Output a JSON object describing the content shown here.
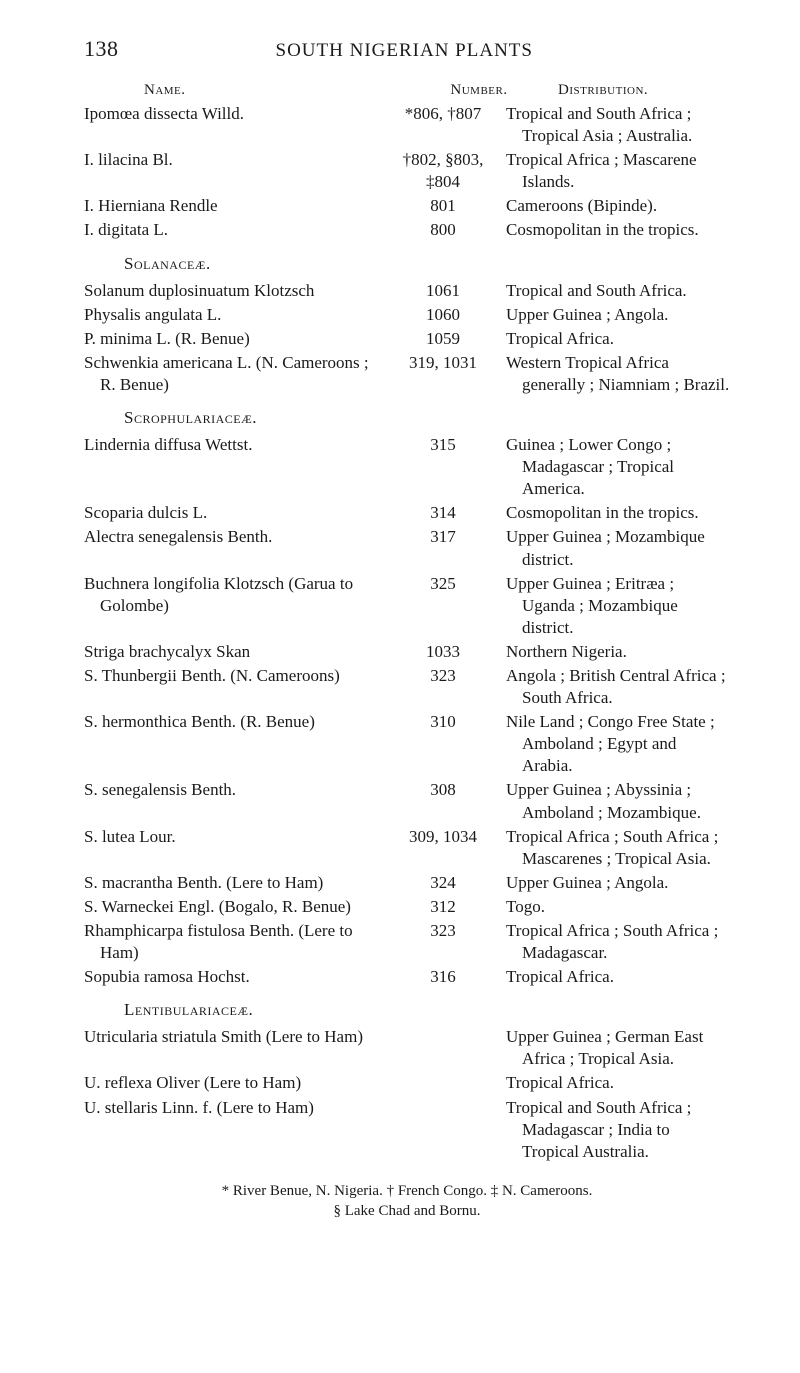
{
  "page": {
    "number": "138",
    "running_title": "SOUTH NIGERIAN PLANTS"
  },
  "columns": {
    "name": "Name.",
    "number": "Number.",
    "distribution": "Distribution."
  },
  "block1": [
    {
      "name": "Ipomœa dissecta Willd.",
      "number": "*806, †807",
      "dist": "Tropical and South Africa ; Tropical Asia ; Australia."
    },
    {
      "name": "I. lilacina Bl.",
      "number": "†802, §803, ‡804",
      "dist": "Tropical Africa ; Mascarene Islands."
    },
    {
      "name": "I. Hierniana Rendle",
      "number": "801",
      "dist": "Cameroons (Bipinde)."
    },
    {
      "name": "I. digitata L.",
      "number": "800",
      "dist": "Cosmopolitan in the tropics."
    }
  ],
  "family1": "Solanaceæ.",
  "block2": [
    {
      "name": "Solanum duplosinuatum Klotzsch",
      "number": "1061",
      "dist": "Tropical and South Africa."
    },
    {
      "name": "Physalis angulata L.",
      "number": "1060",
      "dist": "Upper Guinea ; Angola."
    },
    {
      "name": "P. minima L. (R. Benue)",
      "number": "1059",
      "dist": "Tropical Africa."
    },
    {
      "name": "Schwenkia americana L. (N. Cameroons ; R. Benue)",
      "number": "319, 1031",
      "dist": "Western Tropical Africa generally ; Niamniam ; Brazil."
    }
  ],
  "family2": "Scrophulariaceæ.",
  "block3": [
    {
      "name": "Lindernia diffusa Wettst.",
      "number": "315",
      "dist": "Guinea ; Lower Congo ; Madagascar ; Tropical America."
    },
    {
      "name": "Scoparia dulcis L.",
      "number": "314",
      "dist": "Cosmopolitan in the tropics."
    },
    {
      "name": "Alectra senegalensis Benth.",
      "number": "317",
      "dist": "Upper Guinea ; Mozambique district."
    },
    {
      "name": "Buchnera longifolia Klotzsch (Garua to Golombe)",
      "number": "325",
      "dist": "Upper Guinea ; Eritræa ; Uganda ; Mozambique district."
    },
    {
      "name": "Striga brachycalyx Skan",
      "number": "1033",
      "dist": "Northern Nigeria."
    },
    {
      "name": "S. Thunbergii Benth. (N. Cameroons)",
      "number": "323",
      "dist": "Angola ; British Central Africa ; South Africa."
    },
    {
      "name": "S. hermonthica Benth. (R. Benue)",
      "number": "310",
      "dist": "Nile Land ; Congo Free State ; Amboland ; Egypt and Arabia."
    },
    {
      "name": "S. senegalensis Benth.",
      "number": "308",
      "dist": "Upper Guinea ; Abyssinia ; Amboland ; Mozambique."
    },
    {
      "name": "S. lutea Lour.",
      "number": "309, 1034",
      "dist": "Tropical Africa ; South Africa ; Mascarenes ; Tropical Asia."
    },
    {
      "name": "S. macrantha Benth. (Lere to Ham)",
      "number": "324",
      "dist": "Upper Guinea ; Angola."
    },
    {
      "name": "S. Warneckei Engl. (Bogalo, R. Benue)",
      "number": "312",
      "dist": "Togo."
    },
    {
      "name": "Rhamphicarpa fistulosa Benth. (Lere to Ham)",
      "number": "323",
      "dist": "Tropical Africa ; South Africa ; Madagascar."
    },
    {
      "name": "Sopubia ramosa Hochst.",
      "number": "316",
      "dist": "Tropical Africa."
    }
  ],
  "family3": "Lentibulariaceæ.",
  "block4": [
    {
      "name": "Utricularia striatula Smith (Lere to Ham)",
      "number": "",
      "dist": "Upper Guinea ; German East Africa ; Tropical Asia."
    },
    {
      "name": "U. reflexa Oliver (Lere to Ham)",
      "number": "",
      "dist": "Tropical Africa."
    },
    {
      "name": "U. stellaris Linn. f. (Lere to Ham)",
      "number": "",
      "dist": "Tropical and South Africa ; Madagascar ; India to Tropical Australia."
    }
  ],
  "footnote": {
    "line1": "* River Benue, N. Nigeria.      † French Congo.      ‡ N. Cameroons.",
    "line2": "§ Lake Chad and Bornu."
  }
}
